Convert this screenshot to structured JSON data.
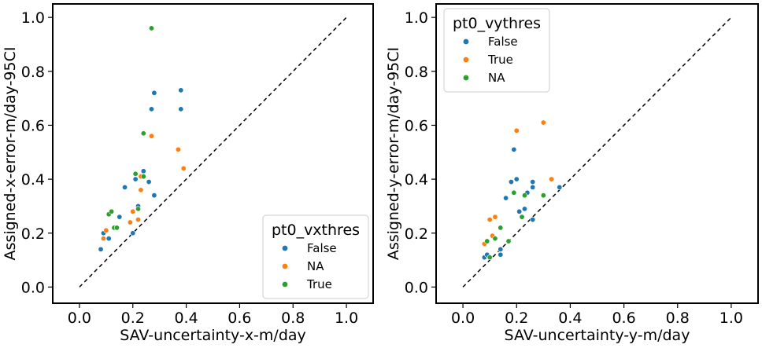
{
  "chart_data": [
    {
      "type": "scatter",
      "xlabel": "SAV-uncertainty-x-m/day",
      "ylabel": "Assigned-x-error-m/day-95CI",
      "xlim": [
        -0.1,
        1.1
      ],
      "ylim": [
        -0.06,
        1.05
      ],
      "xticks": [
        0.0,
        0.2,
        0.4,
        0.6,
        0.8,
        1.0
      ],
      "yticks": [
        0.0,
        0.2,
        0.4,
        0.6,
        0.8,
        1.0
      ],
      "xtick_labels": [
        "0.0",
        "0.2",
        "0.4",
        "0.6",
        "0.8",
        "1.0"
      ],
      "ytick_labels": [
        "0.0",
        "0.2",
        "0.4",
        "0.6",
        "0.8",
        "1.0"
      ],
      "reference_line": [
        [
          0,
          0
        ],
        [
          1,
          1
        ]
      ],
      "legend": {
        "title": "pt0_vxthres",
        "placement": "lower-right"
      },
      "series": [
        {
          "name": "False",
          "color": "#1f77b4",
          "points": [
            [
              0.08,
              0.14
            ],
            [
              0.09,
              0.2
            ],
            [
              0.11,
              0.18
            ],
            [
              0.15,
              0.26
            ],
            [
              0.17,
              0.37
            ],
            [
              0.2,
              0.2
            ],
            [
              0.21,
              0.4
            ],
            [
              0.22,
              0.3
            ],
            [
              0.24,
              0.43
            ],
            [
              0.26,
              0.39
            ],
            [
              0.27,
              0.66
            ],
            [
              0.28,
              0.72
            ],
            [
              0.28,
              0.34
            ],
            [
              0.38,
              0.66
            ],
            [
              0.38,
              0.73
            ]
          ]
        },
        {
          "name": "NA",
          "color": "#ff7f0e",
          "points": [
            [
              0.09,
              0.18
            ],
            [
              0.1,
              0.21
            ],
            [
              0.19,
              0.24
            ],
            [
              0.2,
              0.28
            ],
            [
              0.22,
              0.25
            ],
            [
              0.23,
              0.36
            ],
            [
              0.23,
              0.41
            ],
            [
              0.27,
              0.56
            ],
            [
              0.37,
              0.51
            ],
            [
              0.39,
              0.44
            ]
          ]
        },
        {
          "name": "True",
          "color": "#2ca02c",
          "points": [
            [
              0.11,
              0.27
            ],
            [
              0.12,
              0.28
            ],
            [
              0.13,
              0.22
            ],
            [
              0.14,
              0.22
            ],
            [
              0.21,
              0.42
            ],
            [
              0.22,
              0.29
            ],
            [
              0.24,
              0.41
            ],
            [
              0.24,
              0.57
            ],
            [
              0.27,
              0.96
            ]
          ]
        }
      ]
    },
    {
      "type": "scatter",
      "xlabel": "SAV-uncertainty-y-m/day",
      "ylabel": "Assigned-y-error-m/day-95CI",
      "xlim": [
        -0.1,
        1.1
      ],
      "ylim": [
        -0.06,
        1.05
      ],
      "xticks": [
        0.0,
        0.2,
        0.4,
        0.6,
        0.8,
        1.0
      ],
      "yticks": [
        0.0,
        0.2,
        0.4,
        0.6,
        0.8,
        1.0
      ],
      "xtick_labels": [
        "0.0",
        "0.2",
        "0.4",
        "0.6",
        "0.8",
        "1.0"
      ],
      "ytick_labels": [
        "0.0",
        "0.2",
        "0.4",
        "0.6",
        "0.8",
        "1.0"
      ],
      "reference_line": [
        [
          0,
          0
        ],
        [
          1,
          1
        ]
      ],
      "legend": {
        "title": "pt0_vythres",
        "placement": "upper-left"
      },
      "series": [
        {
          "name": "False",
          "color": "#1f77b4",
          "points": [
            [
              0.08,
              0.11
            ],
            [
              0.09,
              0.12
            ],
            [
              0.12,
              0.18
            ],
            [
              0.14,
              0.12
            ],
            [
              0.14,
              0.14
            ],
            [
              0.16,
              0.33
            ],
            [
              0.18,
              0.39
            ],
            [
              0.19,
              0.51
            ],
            [
              0.2,
              0.4
            ],
            [
              0.21,
              0.28
            ],
            [
              0.23,
              0.29
            ],
            [
              0.24,
              0.35
            ],
            [
              0.26,
              0.37
            ],
            [
              0.26,
              0.39
            ],
            [
              0.26,
              0.25
            ],
            [
              0.36,
              0.37
            ]
          ]
        },
        {
          "name": "True",
          "color": "#ff7f0e",
          "points": [
            [
              0.08,
              0.16
            ],
            [
              0.1,
              0.25
            ],
            [
              0.11,
              0.19
            ],
            [
              0.12,
              0.26
            ],
            [
              0.2,
              0.58
            ],
            [
              0.3,
              0.61
            ],
            [
              0.33,
              0.4
            ]
          ]
        },
        {
          "name": "NA",
          "color": "#2ca02c",
          "points": [
            [
              0.09,
              0.17
            ],
            [
              0.1,
              0.11
            ],
            [
              0.12,
              0.18
            ],
            [
              0.14,
              0.22
            ],
            [
              0.17,
              0.17
            ],
            [
              0.19,
              0.35
            ],
            [
              0.22,
              0.26
            ],
            [
              0.23,
              0.34
            ],
            [
              0.3,
              0.34
            ]
          ]
        }
      ]
    }
  ]
}
